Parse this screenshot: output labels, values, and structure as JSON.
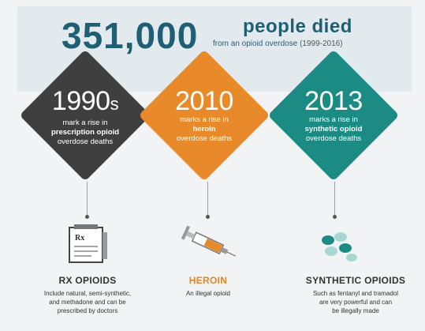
{
  "header": {
    "big_number": "351,000",
    "title": "people died",
    "subtitle": "from an opioid overdose",
    "years": "(1999-2016)"
  },
  "milestones": [
    {
      "year": "1990",
      "year_suffix": "s",
      "line1": "mark a rise in",
      "line2": "prescription opioid",
      "line3": "overdose deaths",
      "color": "#3f3f3f"
    },
    {
      "year": "2010",
      "year_suffix": "",
      "line1": "marks a rise in",
      "line2": "heroin",
      "line3": "overdose deaths",
      "color": "#e88a2a"
    },
    {
      "year": "2013",
      "year_suffix": "",
      "line1": "marks a rise in",
      "line2": "synthetic opioid",
      "line3": "overdose deaths",
      "color": "#1c8b83"
    }
  ],
  "categories": [
    {
      "icon": "prescription-pad-icon",
      "icon_text": "Rx",
      "label": "RX OPIOIDS",
      "color": "#333333",
      "desc1": "Include natural, semi-synthetic,",
      "desc2": "and methadone and can be",
      "desc3": "prescribed by doctors"
    },
    {
      "icon": "syringe-icon",
      "label": "HEROIN",
      "color": "#e08428",
      "desc1": "An illegal opioid",
      "desc2": "",
      "desc3": ""
    },
    {
      "icon": "pills-icon",
      "label": "SYNTHETIC OPIOIDS",
      "color": "#333333",
      "desc1": "Such as fentanyl and tramadol",
      "desc2": "are very powerful and can",
      "desc3": "be illegally made"
    }
  ]
}
